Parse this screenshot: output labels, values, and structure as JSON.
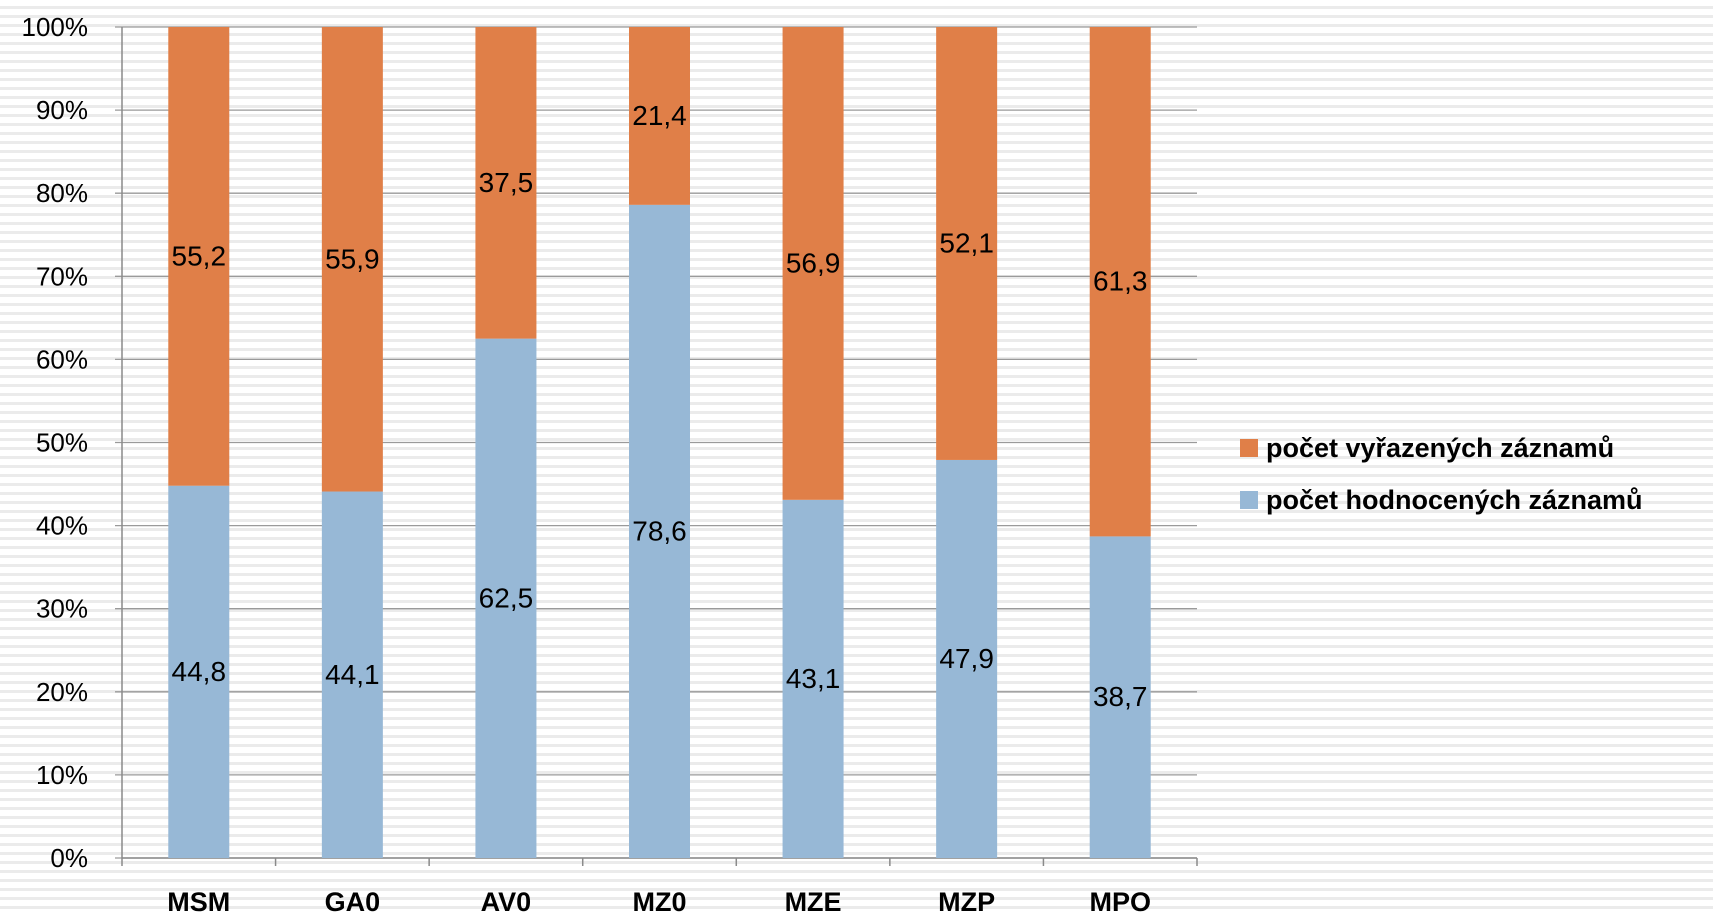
{
  "chart_data": {
    "type": "bar",
    "stacked": true,
    "percent_stacked": true,
    "categories": [
      "MSM",
      "GA0",
      "AV0",
      "MZ0",
      "MZE",
      "MZP",
      "MPO"
    ],
    "series": [
      {
        "name": "počet hodnocených záznamů",
        "color": "#97b8d6",
        "values": [
          44.8,
          44.1,
          62.5,
          78.6,
          43.1,
          47.9,
          38.7
        ]
      },
      {
        "name": "počet vyřazených záznamů",
        "color": "#e07f48",
        "values": [
          55.2,
          55.9,
          37.5,
          21.4,
          56.9,
          52.1,
          61.3
        ]
      }
    ],
    "data_labels": {
      "počet hodnocených záznamů": [
        "44,8",
        "44,1",
        "62,5",
        "78,6",
        "43,1",
        "47,9",
        "38,7"
      ],
      "počet vyřazených záznamů": [
        "55,2",
        "55,9",
        "37,5",
        "21,4",
        "56,9",
        "52,1",
        "61,3"
      ]
    },
    "yticks": [
      "0%",
      "10%",
      "20%",
      "30%",
      "40%",
      "50%",
      "60%",
      "70%",
      "80%",
      "90%",
      "100%"
    ],
    "ylim": [
      0,
      100
    ],
    "grid": true,
    "legend_position": "right",
    "legend_order": [
      "počet vyřazených záznamů",
      "počet hodnocených záznamů"
    ],
    "title": "",
    "xlabel": "",
    "ylabel": ""
  }
}
